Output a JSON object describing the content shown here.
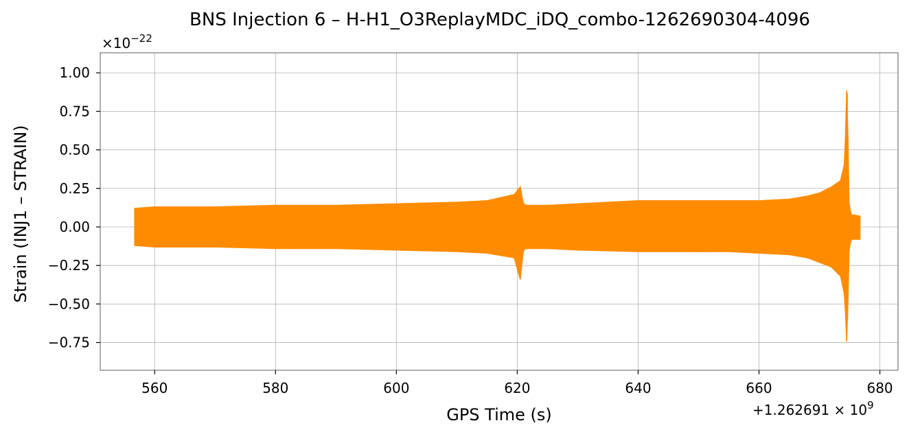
{
  "chart_data": {
    "type": "line",
    "title": "BNS Injection 6 – H-H1_O3ReplayMDC_iDQ_combo-1262690304-4096",
    "xlabel": "GPS Time (s)",
    "ylabel": "Strain (INJ1 – STRAIN)",
    "x_offset_label": "+1.262691 × 10",
    "x_offset_exponent": "9",
    "y_multiplier_label": "×10",
    "y_multiplier_exponent": "−22",
    "xlim": [
      551,
      683
    ],
    "ylim": [
      -0.93,
      1.13
    ],
    "x_ticks": [
      560,
      580,
      600,
      620,
      640,
      660,
      680
    ],
    "x_tick_labels": [
      "560",
      "580",
      "600",
      "620",
      "640",
      "660",
      "680"
    ],
    "y_ticks": [
      -0.75,
      -0.5,
      -0.25,
      0.0,
      0.25,
      0.5,
      0.75,
      1.0
    ],
    "y_tick_labels": [
      "−0.75",
      "−0.50",
      "−0.25",
      "0.00",
      "0.25",
      "0.50",
      "0.75",
      "1.00"
    ],
    "grid": true,
    "series": [
      {
        "color": "#ff8c00",
        "x_range": [
          556.7,
          676.7
        ],
        "envelope": {
          "x": [
            556.7,
            560,
            570,
            580,
            590,
            600,
            610,
            615,
            619.5,
            620.5,
            621.0,
            621.5,
            625,
            630,
            640,
            650,
            655,
            660,
            665,
            668,
            670,
            672,
            673.5,
            674.2,
            674.6,
            674.8,
            675.2,
            676.7
          ],
          "upper": [
            0.12,
            0.13,
            0.13,
            0.14,
            0.14,
            0.15,
            0.16,
            0.17,
            0.21,
            0.26,
            0.15,
            0.14,
            0.14,
            0.15,
            0.17,
            0.17,
            0.17,
            0.17,
            0.18,
            0.2,
            0.22,
            0.26,
            0.3,
            0.42,
            1.04,
            0.18,
            0.08,
            0.07
          ],
          "lower": [
            -0.12,
            -0.13,
            -0.13,
            -0.14,
            -0.14,
            -0.15,
            -0.16,
            -0.17,
            -0.2,
            -0.34,
            -0.15,
            -0.14,
            -0.14,
            -0.15,
            -0.16,
            -0.16,
            -0.16,
            -0.17,
            -0.18,
            -0.2,
            -0.23,
            -0.26,
            -0.32,
            -0.45,
            -0.84,
            -0.18,
            -0.08,
            -0.08
          ]
        }
      }
    ]
  }
}
